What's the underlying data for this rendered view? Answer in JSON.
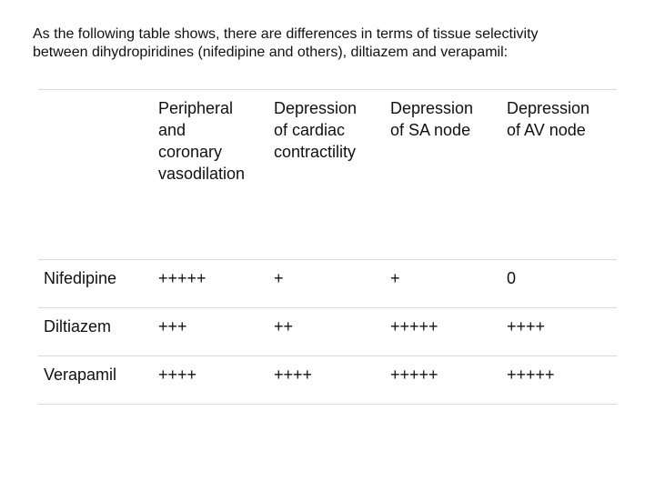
{
  "intro": {
    "line1": "As the following table shows, there are differences in terms of tissue selectivity",
    "line2": "between dihydropiridines (nifedipine and others), diltiazem and verapamil:"
  },
  "table": {
    "headers": [
      {
        "lines": [
          ""
        ]
      },
      {
        "lines": [
          "Peripheral",
          "and",
          "coronary",
          "vasodilation"
        ]
      },
      {
        "lines": [
          "Depression",
          "of cardiac",
          "contractility"
        ]
      },
      {
        "lines": [
          "Depression",
          "of SA node"
        ]
      },
      {
        "lines": [
          "Depression",
          "of AV node"
        ]
      }
    ],
    "rows": [
      {
        "drug": "Nifedipine",
        "values": [
          "+++++",
          "+",
          "+",
          "0"
        ]
      },
      {
        "drug": "Diltiazem",
        "values": [
          "+++",
          "++",
          "+++++",
          "++++"
        ]
      },
      {
        "drug": "Verapamil",
        "values": [
          "++++",
          "++++",
          "+++++",
          "+++++"
        ]
      }
    ]
  }
}
